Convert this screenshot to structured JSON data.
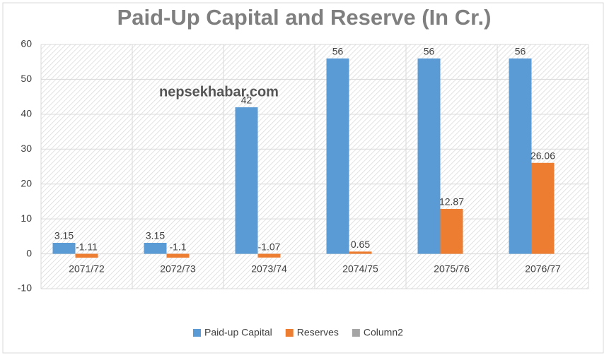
{
  "chart_data": {
    "type": "bar",
    "title": "Paid-Up Capital and Reserve (In Cr.)",
    "annotation": "nepsekhabar.com",
    "categories": [
      "2071/72",
      "2072/73",
      "2073/74",
      "2074/75",
      "2075/76",
      "2076/77"
    ],
    "series": [
      {
        "name": "Paid-up Capital",
        "color": "#5b9bd5",
        "values": [
          3.15,
          3.15,
          42,
          56,
          56,
          56
        ]
      },
      {
        "name": "Reserves",
        "color": "#ed7d31",
        "values": [
          -1.11,
          -1.1,
          -1.07,
          0.65,
          12.87,
          26.06
        ]
      },
      {
        "name": "Column2",
        "color": "#a5a5a5",
        "values": [
          null,
          null,
          null,
          null,
          null,
          null
        ]
      }
    ],
    "ylim": [
      -10,
      60
    ],
    "yticks": [
      -10,
      0,
      10,
      20,
      30,
      40,
      50,
      60
    ],
    "grid": true,
    "legend": "bottom"
  }
}
